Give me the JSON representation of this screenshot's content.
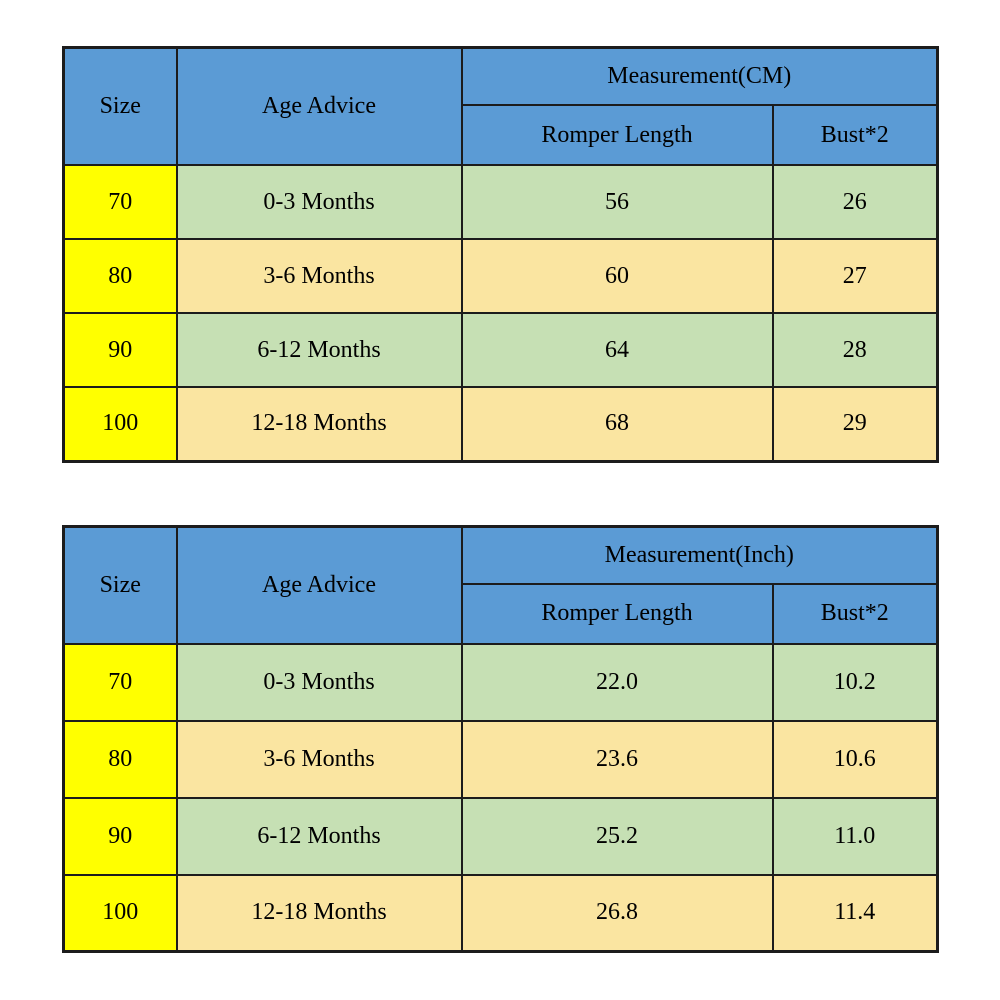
{
  "colors": {
    "header_blue": "#5B9BD5",
    "size_column_yellow": "#FFFF00",
    "row_green": "#C6E0B4",
    "row_tan": "#FAE5A1",
    "border_black": "#1c1c1c",
    "page_background": "#ffffff"
  },
  "chart_data": [
    {
      "type": "table",
      "title": "Measurement(CM)",
      "header": {
        "size": "Size",
        "age": "Age Advice",
        "measurement": "Measurement(CM)",
        "sub1": "Romper Length",
        "sub2": "Bust*2"
      },
      "rows": [
        [
          "70",
          "0-3 Months",
          "56",
          "26"
        ],
        [
          "80",
          "3-6 Months",
          "60",
          "27"
        ],
        [
          "90",
          "6-12 Months",
          "64",
          "28"
        ],
        [
          "100",
          "12-18 Months",
          "68",
          "29"
        ]
      ]
    },
    {
      "type": "table",
      "title": "Measurement(Inch)",
      "header": {
        "size": "Size",
        "age": "Age Advice",
        "measurement": "Measurement(Inch)",
        "sub1": "Romper Length",
        "sub2": "Bust*2"
      },
      "rows": [
        [
          "70",
          "0-3 Months",
          "22.0",
          "10.2"
        ],
        [
          "80",
          "3-6 Months",
          "23.6",
          "10.6"
        ],
        [
          "90",
          "6-12 Months",
          "25.2",
          "11.0"
        ],
        [
          "100",
          "12-18 Months",
          "26.8",
          "11.4"
        ]
      ]
    }
  ]
}
